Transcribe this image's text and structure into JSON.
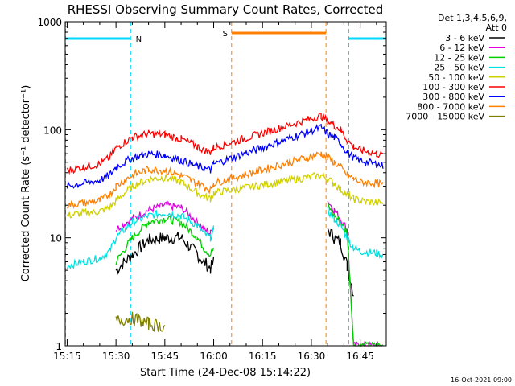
{
  "chart_data": {
    "type": "line",
    "title": "RHESSI Observing Summary Count Rates, Corrected",
    "xlabel": "Start Time (24-Dec-08 15:14:22)",
    "ylabel": "Corrected Count Rate (s⁻¹ detector⁻¹)",
    "yscale": "log",
    "ylim": [
      1,
      1000
    ],
    "xlim_minutes_after_1515": [
      -0.6,
      98
    ],
    "x_ticks": [
      "15:15",
      "15:30",
      "15:45",
      "16:00",
      "16:15",
      "16:30",
      "16:45"
    ],
    "y_ticks": [
      "1",
      "10",
      "100",
      "1000"
    ],
    "legend_header": [
      "Det 1,3,4,5,6,9,",
      "Att 0"
    ],
    "legend_placement": "right",
    "footer": "16-Oct-2021 09:00",
    "flags": [
      {
        "label": "N",
        "color": "#00d8ff",
        "start_min": -0.5,
        "end_min": 19.5
      },
      {
        "label": "N",
        "color": "#00d8ff",
        "start_min": 86.5,
        "end_min": 98
      },
      {
        "label": "S",
        "color": "#ff7f00",
        "start_min": 50.5,
        "end_min": 79.5
      }
    ],
    "x_minutes": [
      0,
      5,
      10,
      13,
      15,
      20,
      25,
      30,
      35,
      40,
      42,
      44,
      45,
      78,
      80,
      82,
      84,
      86,
      88,
      90,
      95,
      97
    ],
    "series": [
      {
        "name": "3 - 6 keV",
        "color": "#000000",
        "values": [
          null,
          null,
          null,
          null,
          5,
          7,
          9.5,
          10,
          10,
          7,
          6,
          5.2,
          6,
          null,
          12,
          10,
          9,
          5.5,
          3,
          null,
          null,
          null
        ]
      },
      {
        "name": "6 - 12 keV",
        "color": "#e000e0",
        "values": [
          null,
          null,
          null,
          null,
          12,
          15,
          18,
          20,
          19,
          14,
          12,
          11,
          13,
          null,
          22,
          18,
          15,
          12,
          1,
          1,
          1,
          1
        ]
      },
      {
        "name": "12 - 25 keV",
        "color": "#00d000",
        "values": [
          null,
          null,
          null,
          null,
          6,
          10,
          14,
          15,
          14,
          10,
          8,
          7,
          8,
          null,
          20,
          16,
          14,
          11,
          1,
          1,
          1,
          1
        ]
      },
      {
        "name": "25 - 50 keV",
        "color": "#00e0e0",
        "values": [
          5.5,
          6,
          6.5,
          7.5,
          10,
          14,
          16,
          17,
          16,
          13,
          11,
          10,
          12,
          null,
          18,
          15,
          13,
          10,
          8,
          7.5,
          7.2,
          7
        ]
      },
      {
        "name": "50 - 100 keV",
        "color": "#d0d000",
        "values": [
          16,
          17,
          17.5,
          19,
          22,
          30,
          35,
          36,
          33,
          26,
          24,
          23,
          26,
          38,
          35,
          32,
          28,
          25,
          23,
          22,
          21,
          21
        ]
      },
      {
        "name": "100 - 300 keV",
        "color": "#ff0000",
        "values": [
          42,
          45,
          48,
          55,
          68,
          85,
          92,
          90,
          82,
          70,
          65,
          62,
          68,
          135,
          120,
          110,
          100,
          80,
          70,
          65,
          60,
          58
        ]
      },
      {
        "name": "300 - 800 keV",
        "color": "#0000ff",
        "values": [
          30,
          32,
          34,
          38,
          45,
          55,
          60,
          58,
          52,
          46,
          44,
          42,
          48,
          105,
          92,
          85,
          75,
          62,
          55,
          52,
          48,
          46
        ]
      },
      {
        "name": "800 - 7000 keV",
        "color": "#ff7f00",
        "values": [
          20,
          21,
          22,
          25,
          30,
          38,
          43,
          42,
          38,
          32,
          30,
          28,
          32,
          60,
          55,
          50,
          45,
          38,
          35,
          33,
          32,
          31
        ]
      },
      {
        "name": "7000 - 15000 keV",
        "color": "#808000",
        "values": [
          null,
          null,
          null,
          null,
          1.7,
          1.8,
          1.6,
          1.5,
          null,
          null,
          null,
          null,
          null,
          null,
          null,
          null,
          null,
          null,
          null,
          null,
          null,
          null
        ]
      }
    ]
  }
}
